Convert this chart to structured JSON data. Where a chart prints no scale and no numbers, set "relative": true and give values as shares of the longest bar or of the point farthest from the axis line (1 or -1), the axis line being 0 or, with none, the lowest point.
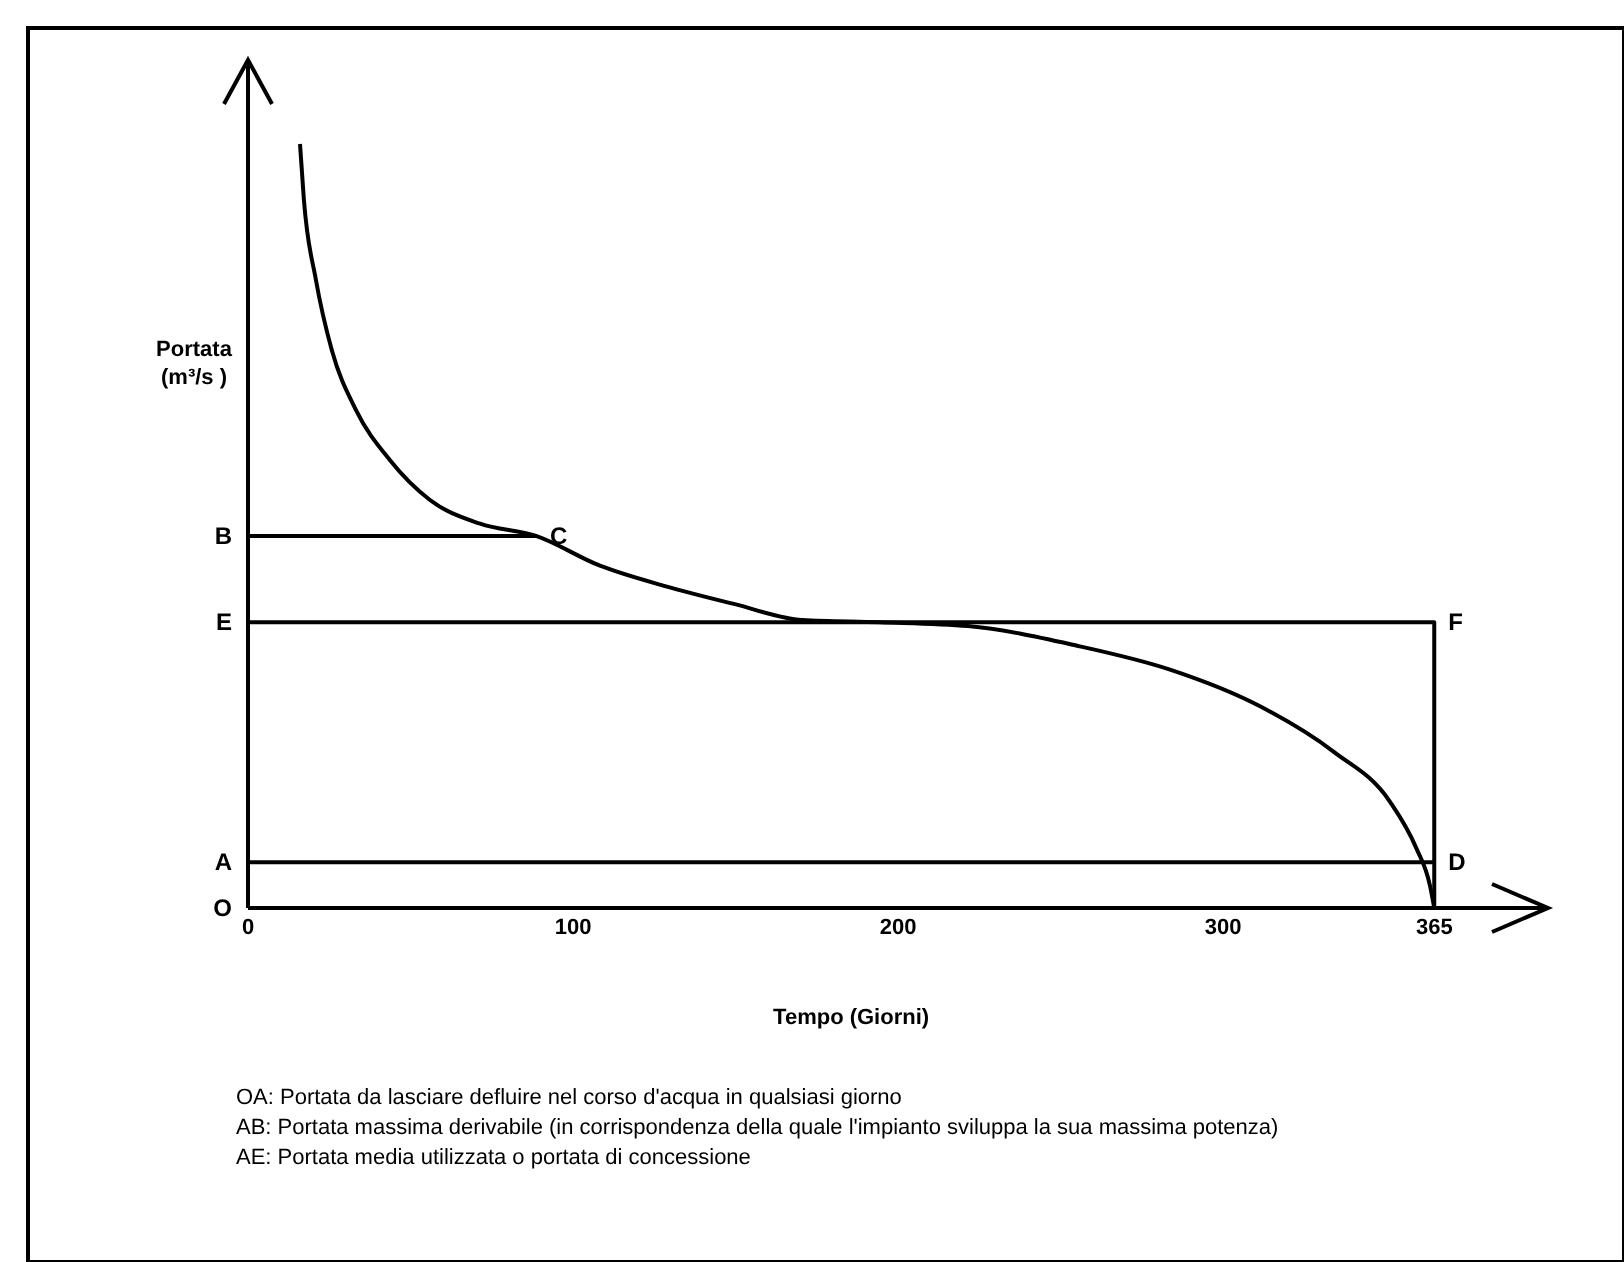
{
  "chart_data": {
    "type": "line",
    "relative": true,
    "xlabel": "Tempo (Giorni)",
    "ylabel": "Portata (m³/s )",
    "xlim": [
      0,
      400
    ],
    "xticks": [
      0,
      100,
      200,
      300,
      365
    ],
    "grid": false,
    "marker": "none",
    "line_style": "solid",
    "series": [
      {
        "color": "#000000",
        "x": [
          16,
          17.2,
          20.9,
          25.8,
          33.2,
          43.7,
          56,
          71.4,
          88.6,
          108.3,
          128.6,
          149.5,
          170.5,
          194.5,
          221.5,
          255.4,
          283.7,
          311.4,
          334.2,
          351.4,
          359.4,
          363.7,
          365
        ],
        "values": [
          1,
          0.927,
          0.822,
          0.73,
          0.652,
          0.586,
          0.534,
          0.503,
          0.487,
          0.448,
          0.421,
          0.398,
          0.377,
          0.374,
          0.369,
          0.343,
          0.312,
          0.264,
          0.204,
          0.139,
          0.079,
          0.029,
          0
        ]
      },
      {
        "color": "#000000",
        "x": [
          0,
          88.6
        ],
        "values": [
          0.487,
          0.487
        ]
      },
      {
        "color": "#000000",
        "x": [
          0,
          365,
          365
        ],
        "values": [
          0.374,
          0.374,
          0
        ]
      },
      {
        "color": "#000000",
        "x": [
          0,
          365
        ],
        "values": [
          0.06,
          0.06
        ]
      }
    ],
    "annotations": [
      {
        "text": "B",
        "x": 0,
        "y": 0.487
      },
      {
        "text": "C",
        "x": 88.6,
        "y": 0.487
      },
      {
        "text": "E",
        "x": 0,
        "y": 0.374
      },
      {
        "text": "F",
        "x": 365,
        "y": 0.374
      },
      {
        "text": "A",
        "x": 0,
        "y": 0.06
      },
      {
        "text": "D",
        "x": 365,
        "y": 0.06
      },
      "O",
      "OA: Portata da lasciare defluire nel corso d'acqua in qualsiasi giorno",
      "AB: Portata massima derivabile (in corrispondenza della quale l'impianto sviluppa la sua massima potenza)",
      "AE: Portata media utilizzata o portata di concessione"
    ]
  }
}
